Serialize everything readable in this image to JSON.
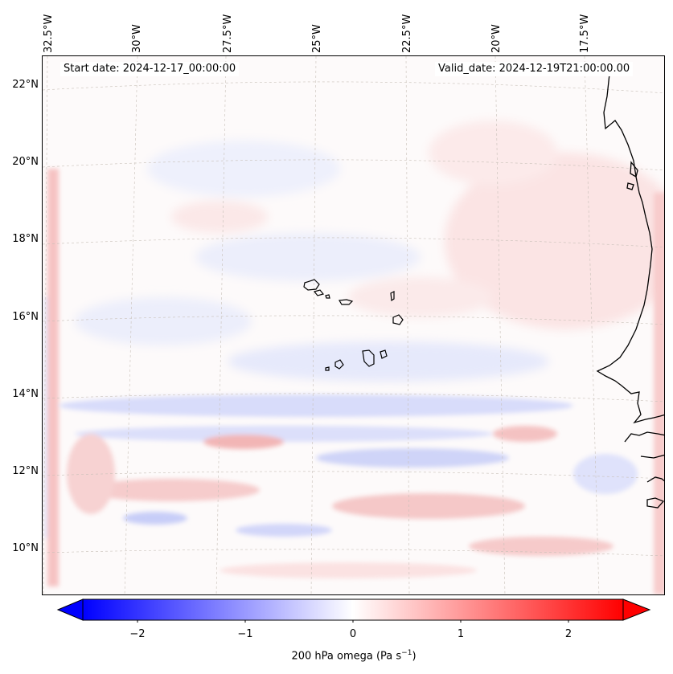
{
  "map": {
    "start_date": "Start date: 2024-12-17_00:00:00",
    "valid_date": "Valid_date: 2024-12-19T21:00:00.00",
    "longitude_labels": [
      "32.5°W",
      "30°W",
      "27.5°W",
      "25°W",
      "22.5°W",
      "20°W",
      "17.5°W"
    ],
    "latitude_labels": [
      "22°N",
      "20°N",
      "18°N",
      "16°N",
      "14°N",
      "12°N",
      "10°N"
    ],
    "variable": "200 hPa omega",
    "units": "Pa s",
    "units_exponent": "−1",
    "colormap": "bwr",
    "colors": {
      "negative": "#0000ff",
      "zero": "#ffffff",
      "positive": "#ff0000",
      "coastline": "#000000"
    }
  },
  "colorbar": {
    "ticks": [
      "−2",
      "−1",
      "0",
      "1",
      "2"
    ],
    "range": [
      -2.7,
      2.7
    ],
    "extend": "both",
    "label_text": "200 hPa omega (Pa s",
    "label_sup": "−1",
    "label_close": ")"
  }
}
